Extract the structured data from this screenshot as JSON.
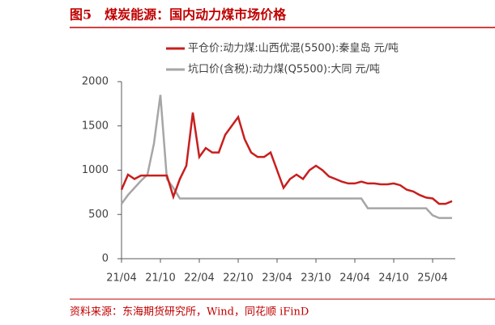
{
  "chart_data": {
    "type": "line",
    "title": "图5　煤炭能源：国内动力煤市场价格",
    "source": "资料来源：东海期货研究所，Wind，同花顺 iFinD",
    "x": [
      "21/04",
      "21/05",
      "21/06",
      "21/07",
      "21/08",
      "21/09",
      "21/10",
      "21/11",
      "21/12",
      "22/01",
      "22/02",
      "22/03",
      "22/04",
      "22/05",
      "22/06",
      "22/07",
      "22/08",
      "22/09",
      "22/10",
      "22/11",
      "22/12",
      "23/01",
      "23/02",
      "23/03",
      "23/04",
      "23/05",
      "23/06",
      "23/07",
      "23/08",
      "23/09",
      "23/10",
      "23/11",
      "23/12",
      "24/01",
      "24/02",
      "24/03",
      "24/04",
      "24/05",
      "24/06",
      "24/07",
      "24/08",
      "24/09",
      "24/10",
      "24/11",
      "24/12",
      "25/01",
      "25/02",
      "25/03",
      "25/04",
      "25/05",
      "25/06",
      "25/07"
    ],
    "xticks": [
      "21/04",
      "21/10",
      "22/04",
      "22/10",
      "23/04",
      "23/10",
      "24/04",
      "24/10",
      "25/04"
    ],
    "ylim": [
      0,
      2000
    ],
    "yticks": [
      0,
      500,
      1000,
      1500,
      2000
    ],
    "series": [
      {
        "name": "平仓价:动力煤:山西优混(5500):秦皇岛 元/吨",
        "color": "#c81e1e",
        "values": [
          780,
          950,
          900,
          940,
          940,
          940,
          940,
          940,
          700,
          900,
          1050,
          1650,
          1150,
          1250,
          1200,
          1200,
          1400,
          1500,
          1600,
          1350,
          1200,
          1150,
          1150,
          1200,
          1000,
          800,
          900,
          950,
          900,
          1000,
          1050,
          1000,
          930,
          900,
          870,
          850,
          850,
          870,
          850,
          850,
          840,
          840,
          850,
          830,
          780,
          760,
          720,
          690,
          680,
          620,
          620,
          650
        ]
      },
      {
        "name": "坑口价(含税):动力煤(Q5500):大同 元/吨",
        "color": "#a6a6a6",
        "values": [
          620,
          720,
          800,
          880,
          950,
          1300,
          1850,
          900,
          800,
          680,
          680,
          680,
          680,
          680,
          680,
          680,
          680,
          680,
          680,
          680,
          680,
          680,
          680,
          680,
          680,
          680,
          680,
          680,
          680,
          680,
          680,
          680,
          680,
          680,
          680,
          680,
          680,
          680,
          570,
          570,
          570,
          570,
          570,
          570,
          570,
          570,
          570,
          570,
          490,
          460,
          460,
          460
        ]
      }
    ]
  }
}
